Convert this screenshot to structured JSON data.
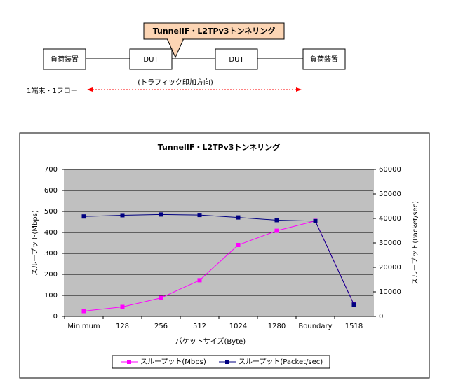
{
  "diagram": {
    "callout": "TunnelIF・L2TPv3トンネリング",
    "nodes": [
      {
        "label": "負荷装置"
      },
      {
        "label": "DUT"
      },
      {
        "label": "DUT"
      },
      {
        "label": "負荷装置"
      }
    ],
    "direction_label": "(トラフィック印加方向)",
    "flow_label": "1端末・1フロー"
  },
  "chart_data": {
    "type": "line",
    "title": "TunnelIF・L2TPv3トンネリング",
    "categories": [
      "Minimum",
      "128",
      "256",
      "512",
      "1024",
      "1280",
      "Boundary",
      "1518"
    ],
    "series": [
      {
        "name": "スループット(Mbps)",
        "color": "#ff00ff",
        "values": [
          25,
          45,
          88,
          172,
          340,
          408,
          455,
          57
        ]
      },
      {
        "name": "スループット(Packet/sec)",
        "color": "#000080",
        "axis": "y2",
        "values": [
          40800,
          41300,
          41600,
          41400,
          40400,
          39300,
          38900,
          4800
        ]
      }
    ],
    "ylim": [
      0,
      700
    ],
    "yticks": [
      0,
      100,
      200,
      300,
      400,
      500,
      600,
      700
    ],
    "y2lim": [
      0,
      60000
    ],
    "y2ticks": [
      0,
      10000,
      20000,
      30000,
      40000,
      50000,
      60000
    ],
    "ylabel": "スループット(Mbps)",
    "y2label": "スループット(Packet/sec)",
    "xlabel": "パケットサイズ(Byte)",
    "grid": true,
    "legend": "bottom"
  }
}
